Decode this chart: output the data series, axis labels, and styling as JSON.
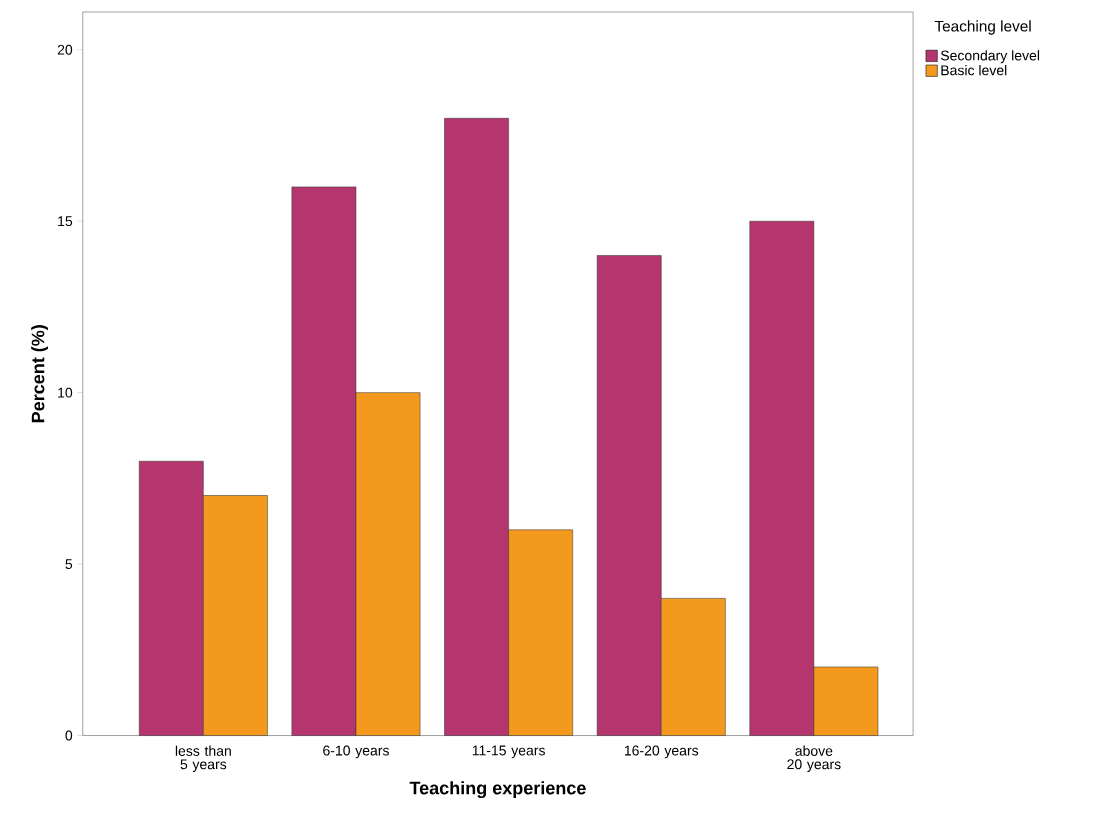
{
  "chart_data": {
    "type": "bar",
    "xlabel": "Teaching experience",
    "ylabel": "Percent (%)",
    "legend_title": "Teaching level",
    "categories": [
      "less than 5 years",
      "6-10 years",
      "11-15 years",
      "16-20 years",
      "above 20 years"
    ],
    "series": [
      {
        "name": "Secondary level",
        "color": "#b5366f",
        "values": [
          8,
          16,
          18,
          14,
          15
        ]
      },
      {
        "name": "Basic level",
        "color": "#f39a1e",
        "values": [
          7,
          10,
          6,
          4,
          2
        ]
      }
    ],
    "ylim": [
      0,
      21.1
    ],
    "yticks": [
      0,
      5,
      10,
      15,
      20
    ],
    "grid": false,
    "legend": "top right"
  }
}
